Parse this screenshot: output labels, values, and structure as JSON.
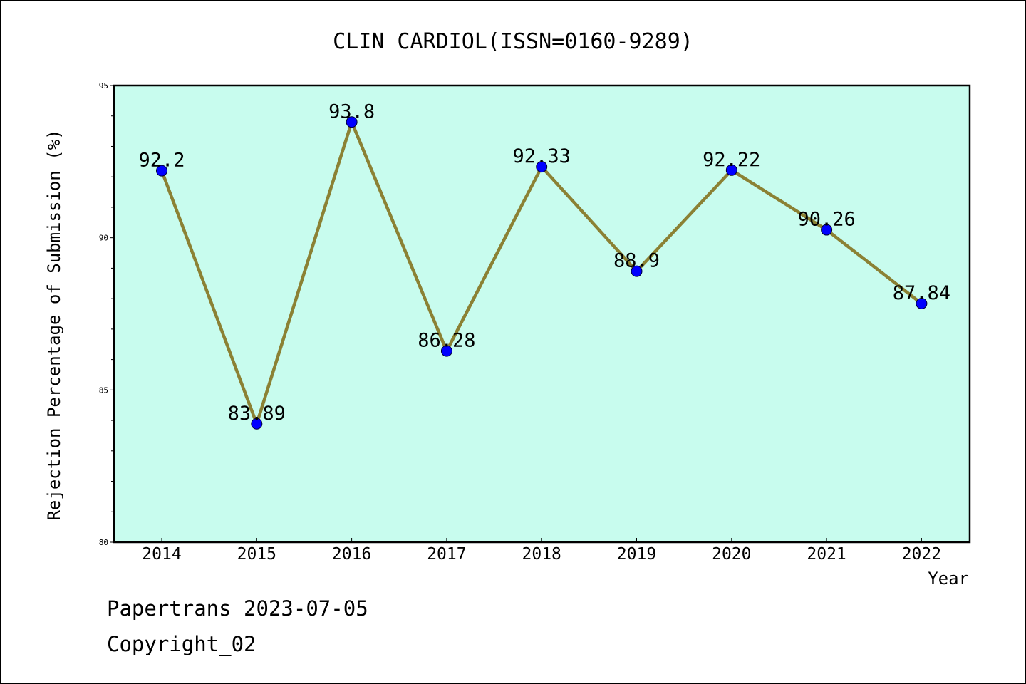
{
  "footer": {
    "line1": "Papertrans 2023-07-05",
    "line2": "Copyright_02"
  },
  "colors": {
    "plot_background": "#c8fcee",
    "line": "#8b8134",
    "marker": "#0000ff"
  },
  "chart_data": {
    "type": "line",
    "title": "CLIN CARDIOL(ISSN=0160-9289)",
    "xlabel": "Year",
    "ylabel": "Rejection Percentage of Submission (%)",
    "ylim": [
      80,
      95
    ],
    "yticks": [
      80,
      85,
      90,
      95
    ],
    "grid": false,
    "categories": [
      "2014",
      "2015",
      "2016",
      "2017",
      "2018",
      "2019",
      "2020",
      "2021",
      "2022"
    ],
    "series": [
      {
        "values": [
          92.2,
          83.89,
          93.8,
          86.28,
          92.33,
          88.9,
          92.22,
          90.26,
          87.84
        ],
        "data_labels": [
          "92.2",
          "83.89",
          "93.8",
          "86.28",
          "92.33",
          "88.9",
          "92.22",
          "90.26",
          "87.84"
        ]
      }
    ]
  }
}
